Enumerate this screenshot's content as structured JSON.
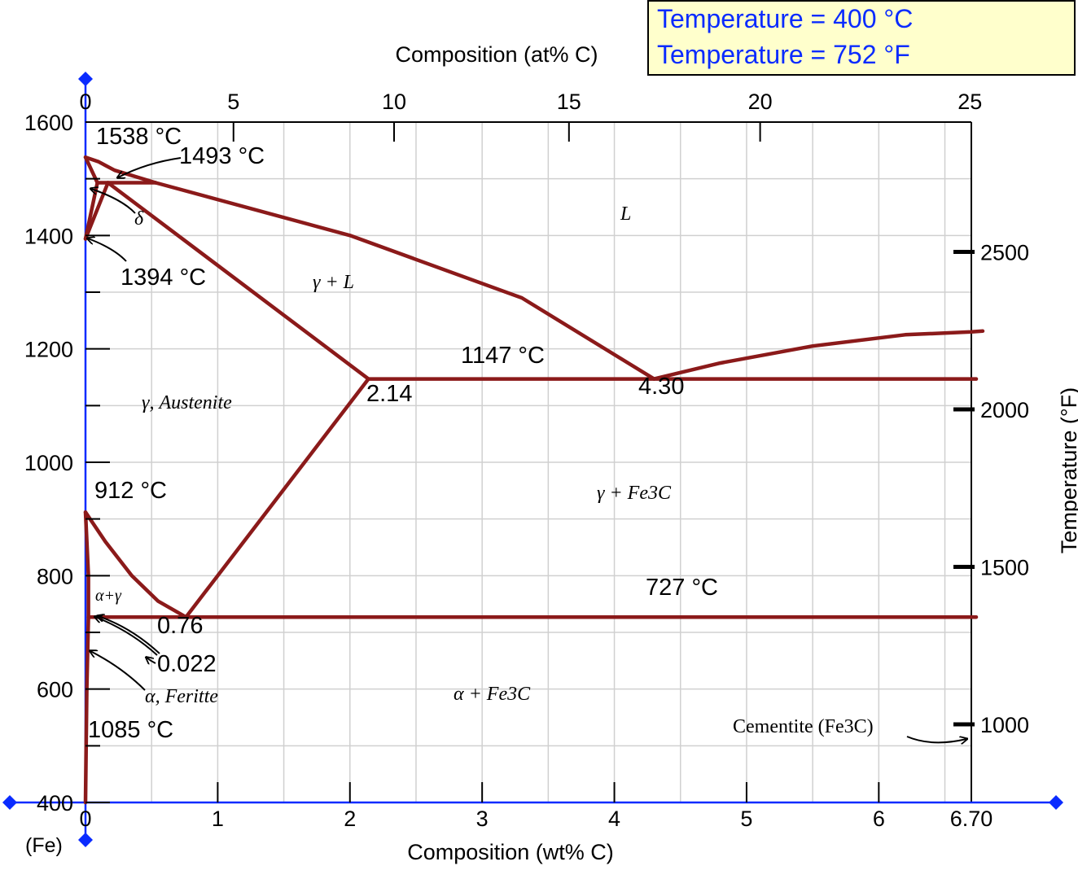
{
  "readout": {
    "line1": "Temperature = 400 °C",
    "line2": "Temperature = 752 °F"
  },
  "colors": {
    "phase_boundary": "#8b1a1a",
    "axis": "#0a2bff",
    "grid": "#d0d0d0",
    "readout_bg": "#ffffcc",
    "readout_text": "#0a2bff"
  },
  "chart_data": {
    "type": "line",
    "title": "",
    "xlabel": "Composition (wt% C)",
    "x_top_label": "Composition (at% C)",
    "ylabel": "",
    "y_right_label": "Temperature (°F)",
    "xlim": [
      0,
      6.7
    ],
    "ylim": [
      400,
      1600
    ],
    "x_ticks": [
      "0",
      "1",
      "2",
      "3",
      "4",
      "5",
      "6",
      "6.70"
    ],
    "x_tick_values": [
      0,
      1,
      2,
      3,
      4,
      5,
      6,
      6.7
    ],
    "x_origin_label": "(Fe)",
    "x_top_ticks": [
      "0",
      "5",
      "10",
      "15",
      "20",
      "25"
    ],
    "x_top_tick_values": [
      0,
      5,
      10,
      15,
      20,
      25
    ],
    "y_ticks": [
      "400",
      "600",
      "800",
      "1000",
      "1200",
      "1400",
      "1600"
    ],
    "y_tick_values": [
      400,
      600,
      800,
      1000,
      1200,
      1400,
      1600
    ],
    "y_right_ticks": [
      "1000",
      "1500",
      "2000",
      "2500"
    ],
    "y_right_tick_values": [
      1000,
      1500,
      2000,
      2500
    ],
    "grid": true,
    "series": [
      {
        "key": "liquidus_delta",
        "points": [
          [
            0,
            1538
          ],
          [
            0.1,
            1530
          ],
          [
            0.22,
            1515
          ],
          [
            0.53,
            1493
          ]
        ]
      },
      {
        "key": "peritectic",
        "points": [
          [
            0.09,
            1493
          ],
          [
            0.53,
            1493
          ]
        ]
      },
      {
        "key": "delta_solidus",
        "points": [
          [
            0,
            1538
          ],
          [
            0.09,
            1493
          ]
        ]
      },
      {
        "key": "delta_gamma_solvus",
        "points": [
          [
            0.09,
            1493
          ],
          [
            0,
            1394
          ]
        ]
      },
      {
        "key": "delta_gamma_lower",
        "points": [
          [
            0.17,
            1493
          ],
          [
            0,
            1394
          ]
        ]
      },
      {
        "key": "liquidus_hypo",
        "points": [
          [
            0.53,
            1493
          ],
          [
            2.0,
            1400
          ],
          [
            3.3,
            1290
          ],
          [
            4.3,
            1147
          ]
        ]
      },
      {
        "key": "solidus_gamma",
        "points": [
          [
            0.17,
            1493
          ],
          [
            2.14,
            1147
          ]
        ]
      },
      {
        "key": "eutectic",
        "points": [
          [
            2.14,
            1147
          ],
          [
            6.7,
            1147
          ]
        ]
      },
      {
        "key": "liquidus_hyper",
        "points": [
          [
            4.3,
            1147
          ],
          [
            4.8,
            1175
          ],
          [
            5.5,
            1205
          ],
          [
            6.2,
            1225
          ],
          [
            6.7,
            1230
          ]
        ]
      },
      {
        "key": "acm",
        "points": [
          [
            2.14,
            1147
          ],
          [
            0.76,
            727
          ]
        ]
      },
      {
        "key": "a3",
        "points": [
          [
            0,
            912
          ],
          [
            0.15,
            860
          ],
          [
            0.35,
            800
          ],
          [
            0.55,
            755
          ],
          [
            0.76,
            727
          ]
        ]
      },
      {
        "key": "alpha_gamma_solvus",
        "points": [
          [
            0,
            912
          ],
          [
            0.022,
            800
          ],
          [
            0.022,
            727
          ]
        ]
      },
      {
        "key": "eutectoid",
        "points": [
          [
            0.022,
            727
          ],
          [
            6.7,
            727
          ]
        ]
      },
      {
        "key": "ferrite_solvus",
        "points": [
          [
            0.022,
            727
          ],
          [
            0.01,
            600
          ],
          [
            0.005,
            500
          ],
          [
            0,
            400
          ]
        ]
      }
    ],
    "annotations": [
      {
        "key": "t1538",
        "text": "1538 °C"
      },
      {
        "key": "t1493",
        "text": "1493 °C"
      },
      {
        "key": "delta",
        "text": "δ"
      },
      {
        "key": "t1394",
        "text": "1394 °C"
      },
      {
        "key": "L",
        "text": "L"
      },
      {
        "key": "gammaL",
        "text": "γ + L"
      },
      {
        "key": "t1147",
        "text": "1147 °C"
      },
      {
        "key": "c214",
        "text": "2.14"
      },
      {
        "key": "c430",
        "text": "4.30"
      },
      {
        "key": "austenite",
        "text": "γ, Austenite"
      },
      {
        "key": "t912",
        "text": "912 °C"
      },
      {
        "key": "gammaFe3C",
        "text": "γ + Fe3C"
      },
      {
        "key": "alphagamma",
        "text": "α+γ"
      },
      {
        "key": "t727",
        "text": "727 °C"
      },
      {
        "key": "c076",
        "text": "0.76"
      },
      {
        "key": "c0022",
        "text": "0.022"
      },
      {
        "key": "ferrite",
        "text": "α, Feritte"
      },
      {
        "key": "alphaFe3C",
        "text": "α + Fe3C"
      },
      {
        "key": "t1085",
        "text": "1085 °C"
      },
      {
        "key": "cementite",
        "text": "Cementite (Fe3C)"
      }
    ]
  }
}
